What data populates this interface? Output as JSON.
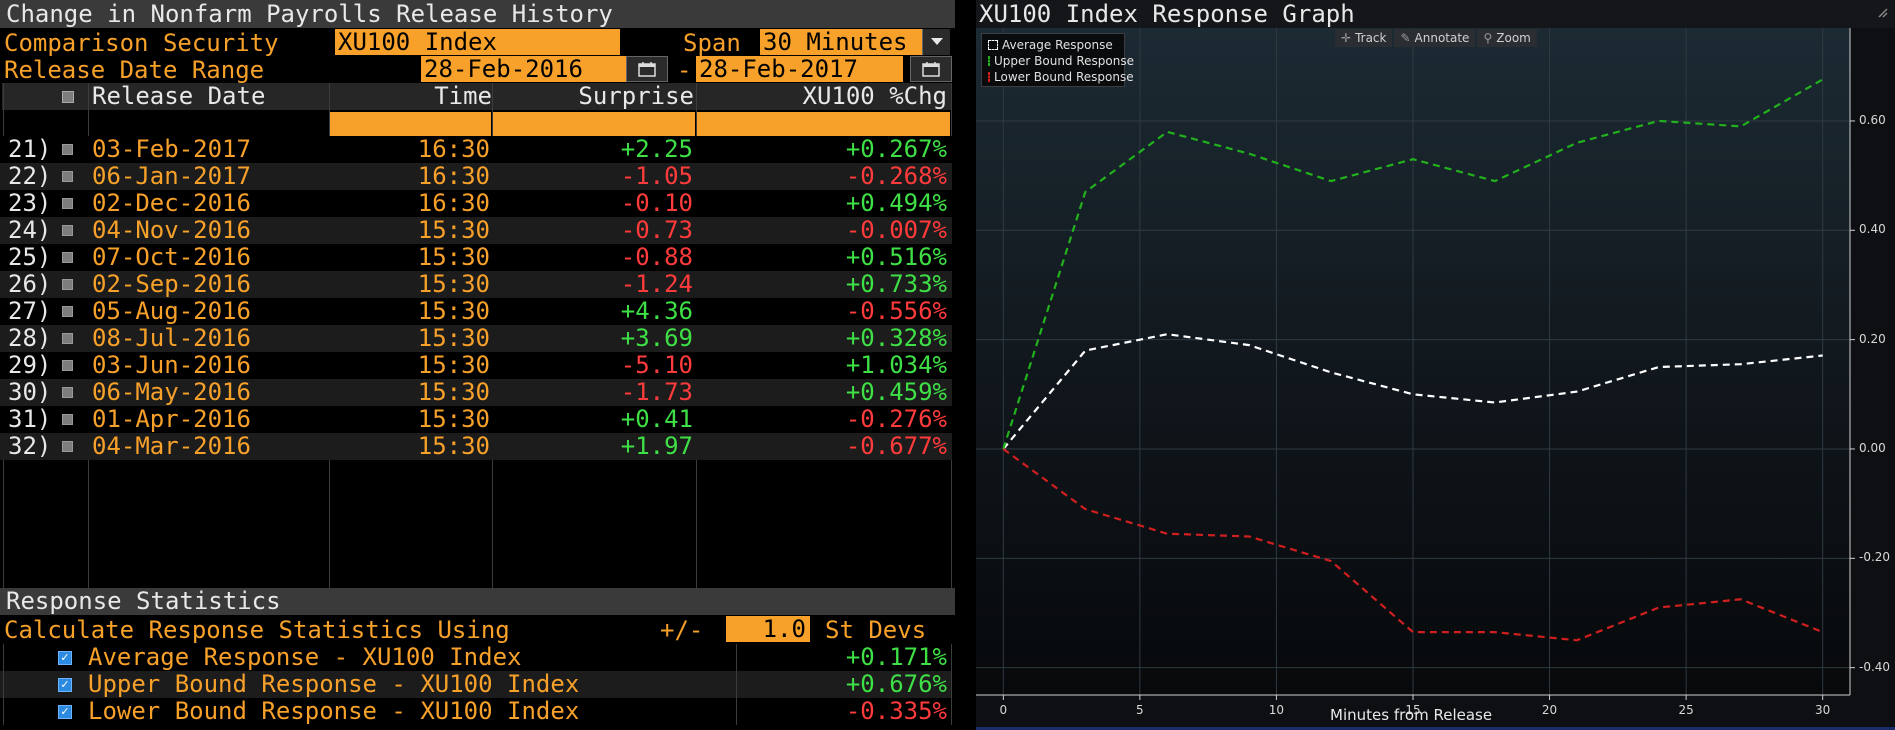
{
  "left": {
    "title": "Change in Nonfarm Payrolls Release History",
    "comparison_label": "Comparison Security",
    "comparison_value": "XU100 Index",
    "span_label": "Span",
    "span_value": "30 Minutes",
    "date_range_label": "Release Date Range",
    "date_from": "28-Feb-2016",
    "date_sep": "-",
    "date_to": "28-Feb-2017",
    "columns": {
      "release_date": "Release Date",
      "time": "Time",
      "surprise": "Surprise",
      "change": "XU100 %Chg"
    },
    "rows": [
      {
        "num": "21)",
        "date": "03-Feb-2017",
        "time": "16:30",
        "surprise": "+2.25",
        "change": "+0.267%"
      },
      {
        "num": "22)",
        "date": "06-Jan-2017",
        "time": "16:30",
        "surprise": "-1.05",
        "change": "-0.268%"
      },
      {
        "num": "23)",
        "date": "02-Dec-2016",
        "time": "16:30",
        "surprise": "-0.10",
        "change": "+0.494%"
      },
      {
        "num": "24)",
        "date": "04-Nov-2016",
        "time": "15:30",
        "surprise": "-0.73",
        "change": "-0.007%"
      },
      {
        "num": "25)",
        "date": "07-Oct-2016",
        "time": "15:30",
        "surprise": "-0.88",
        "change": "+0.516%"
      },
      {
        "num": "26)",
        "date": "02-Sep-2016",
        "time": "15:30",
        "surprise": "-1.24",
        "change": "+0.733%"
      },
      {
        "num": "27)",
        "date": "05-Aug-2016",
        "time": "15:30",
        "surprise": "+4.36",
        "change": "-0.556%"
      },
      {
        "num": "28)",
        "date": "08-Jul-2016",
        "time": "15:30",
        "surprise": "+3.69",
        "change": "+0.328%"
      },
      {
        "num": "29)",
        "date": "03-Jun-2016",
        "time": "15:30",
        "surprise": "-5.10",
        "change": "+1.034%"
      },
      {
        "num": "30)",
        "date": "06-May-2016",
        "time": "15:30",
        "surprise": "-1.73",
        "change": "+0.459%"
      },
      {
        "num": "31)",
        "date": "01-Apr-2016",
        "time": "15:30",
        "surprise": "+0.41",
        "change": "-0.276%"
      },
      {
        "num": "32)",
        "date": "04-Mar-2016",
        "time": "15:30",
        "surprise": "+1.97",
        "change": "-0.677%"
      }
    ],
    "stats": {
      "title": "Response Statistics",
      "calc_label": "Calculate Response Statistics Using",
      "plusminus": "+/-",
      "stdev_value": "1.0",
      "stdev_label": "St Devs",
      "items": [
        {
          "label": "Average Response - XU100 Index",
          "value": "+0.171%"
        },
        {
          "label": "Upper Bound Response - XU100 Index",
          "value": "+0.676%"
        },
        {
          "label": "Lower Bound Response - XU100 Index",
          "value": "-0.335%"
        }
      ]
    }
  },
  "graph": {
    "title": "XU100 Index Response Graph",
    "toolbar": {
      "track": "Track",
      "annotate": "Annotate",
      "zoom": "Zoom"
    },
    "legend": [
      "Average Response",
      "Upper Bound Response",
      "Lower Bound Response"
    ],
    "xlabel": "Minutes from Release",
    "colors": {
      "average": "#ffffff",
      "upper": "#22b11c",
      "lower": "#d11f1f"
    }
  },
  "chart_data": {
    "type": "line",
    "x": [
      0,
      3,
      6,
      9,
      12,
      15,
      18,
      21,
      24,
      27,
      30
    ],
    "series": [
      {
        "name": "Average Response",
        "values": [
          0.0,
          0.18,
          0.21,
          0.19,
          0.14,
          0.1,
          0.085,
          0.105,
          0.15,
          0.155,
          0.171
        ]
      },
      {
        "name": "Upper Bound Response",
        "values": [
          0.0,
          0.47,
          0.58,
          0.54,
          0.49,
          0.53,
          0.49,
          0.56,
          0.6,
          0.59,
          0.676
        ]
      },
      {
        "name": "Lower Bound Response",
        "values": [
          0.0,
          -0.11,
          -0.155,
          -0.16,
          -0.205,
          -0.335,
          -0.335,
          -0.35,
          -0.29,
          -0.275,
          -0.335
        ]
      }
    ],
    "xlabel": "Minutes from Release",
    "ylabel": "",
    "xlim": [
      -1,
      31
    ],
    "ylim": [
      -0.45,
      0.77
    ],
    "xticks": [
      "0",
      "5",
      "10",
      "15",
      "20",
      "25",
      "30"
    ],
    "yticks": [
      "0.60",
      "0.40",
      "0.20",
      "0.00",
      "-0.20",
      "-0.40"
    ],
    "grid": true,
    "legend_position": "top-left"
  }
}
